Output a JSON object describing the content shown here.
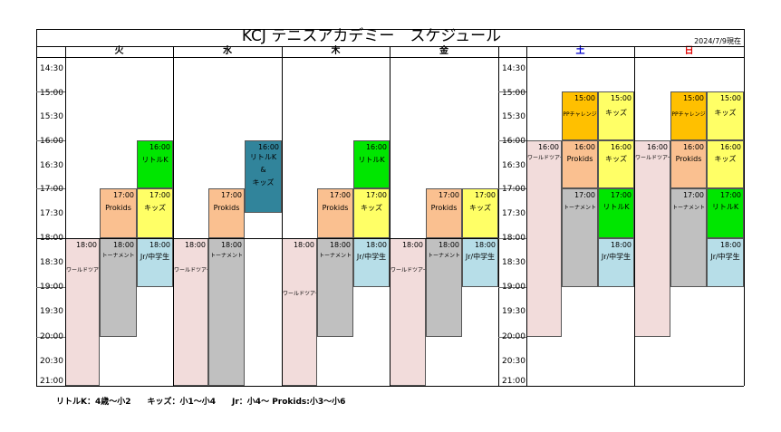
{
  "title": "KCJ テニスアカデミー　スケジュール",
  "date_note": "2024/7/9現在",
  "days": {
    "tue": "火",
    "wed": "水",
    "thu": "木",
    "fri": "金",
    "sat": "土",
    "sun": "日"
  },
  "day_colors": {
    "sat": "#0000cc",
    "sun": "#e00000"
  },
  "times": [
    "14:30",
    "15:00",
    "15:30",
    "16:00",
    "16:30",
    "17:00",
    "17:30",
    "18:00",
    "18:30",
    "19:00",
    "19:30",
    "20:00",
    "20:30",
    "21:00"
  ],
  "colors": {
    "world_tour": "#f2dcdb",
    "tournament": "#c0c0c0",
    "jr": "#b7dee8",
    "prokids": "#fac090",
    "kids": "#ffff66",
    "little_k": "#00e600",
    "little_kids_combo": "#31849b",
    "pp_challenge": "#ffc000"
  },
  "classes": {
    "world_tour": "ワールドツアー",
    "tournament": "トーナメント",
    "jr": "Jr/中学生",
    "prokids": "Prokids",
    "kids": "キッズ",
    "little_k": "リトルK",
    "little_kids_combo_1": "リトルK",
    "little_kids_combo_2": "&",
    "little_kids_combo_3": "キッズ",
    "pp_challenge": "PPチャレンジ"
  },
  "start_times": {
    "t1500": "15:00",
    "t1600": "16:00",
    "t1700": "17:00",
    "t1800": "18:00"
  },
  "legend": "リトルK：4歳～小2　　キッズ：小1～小4　　Jr：小4～ Prokids:小3～小6"
}
